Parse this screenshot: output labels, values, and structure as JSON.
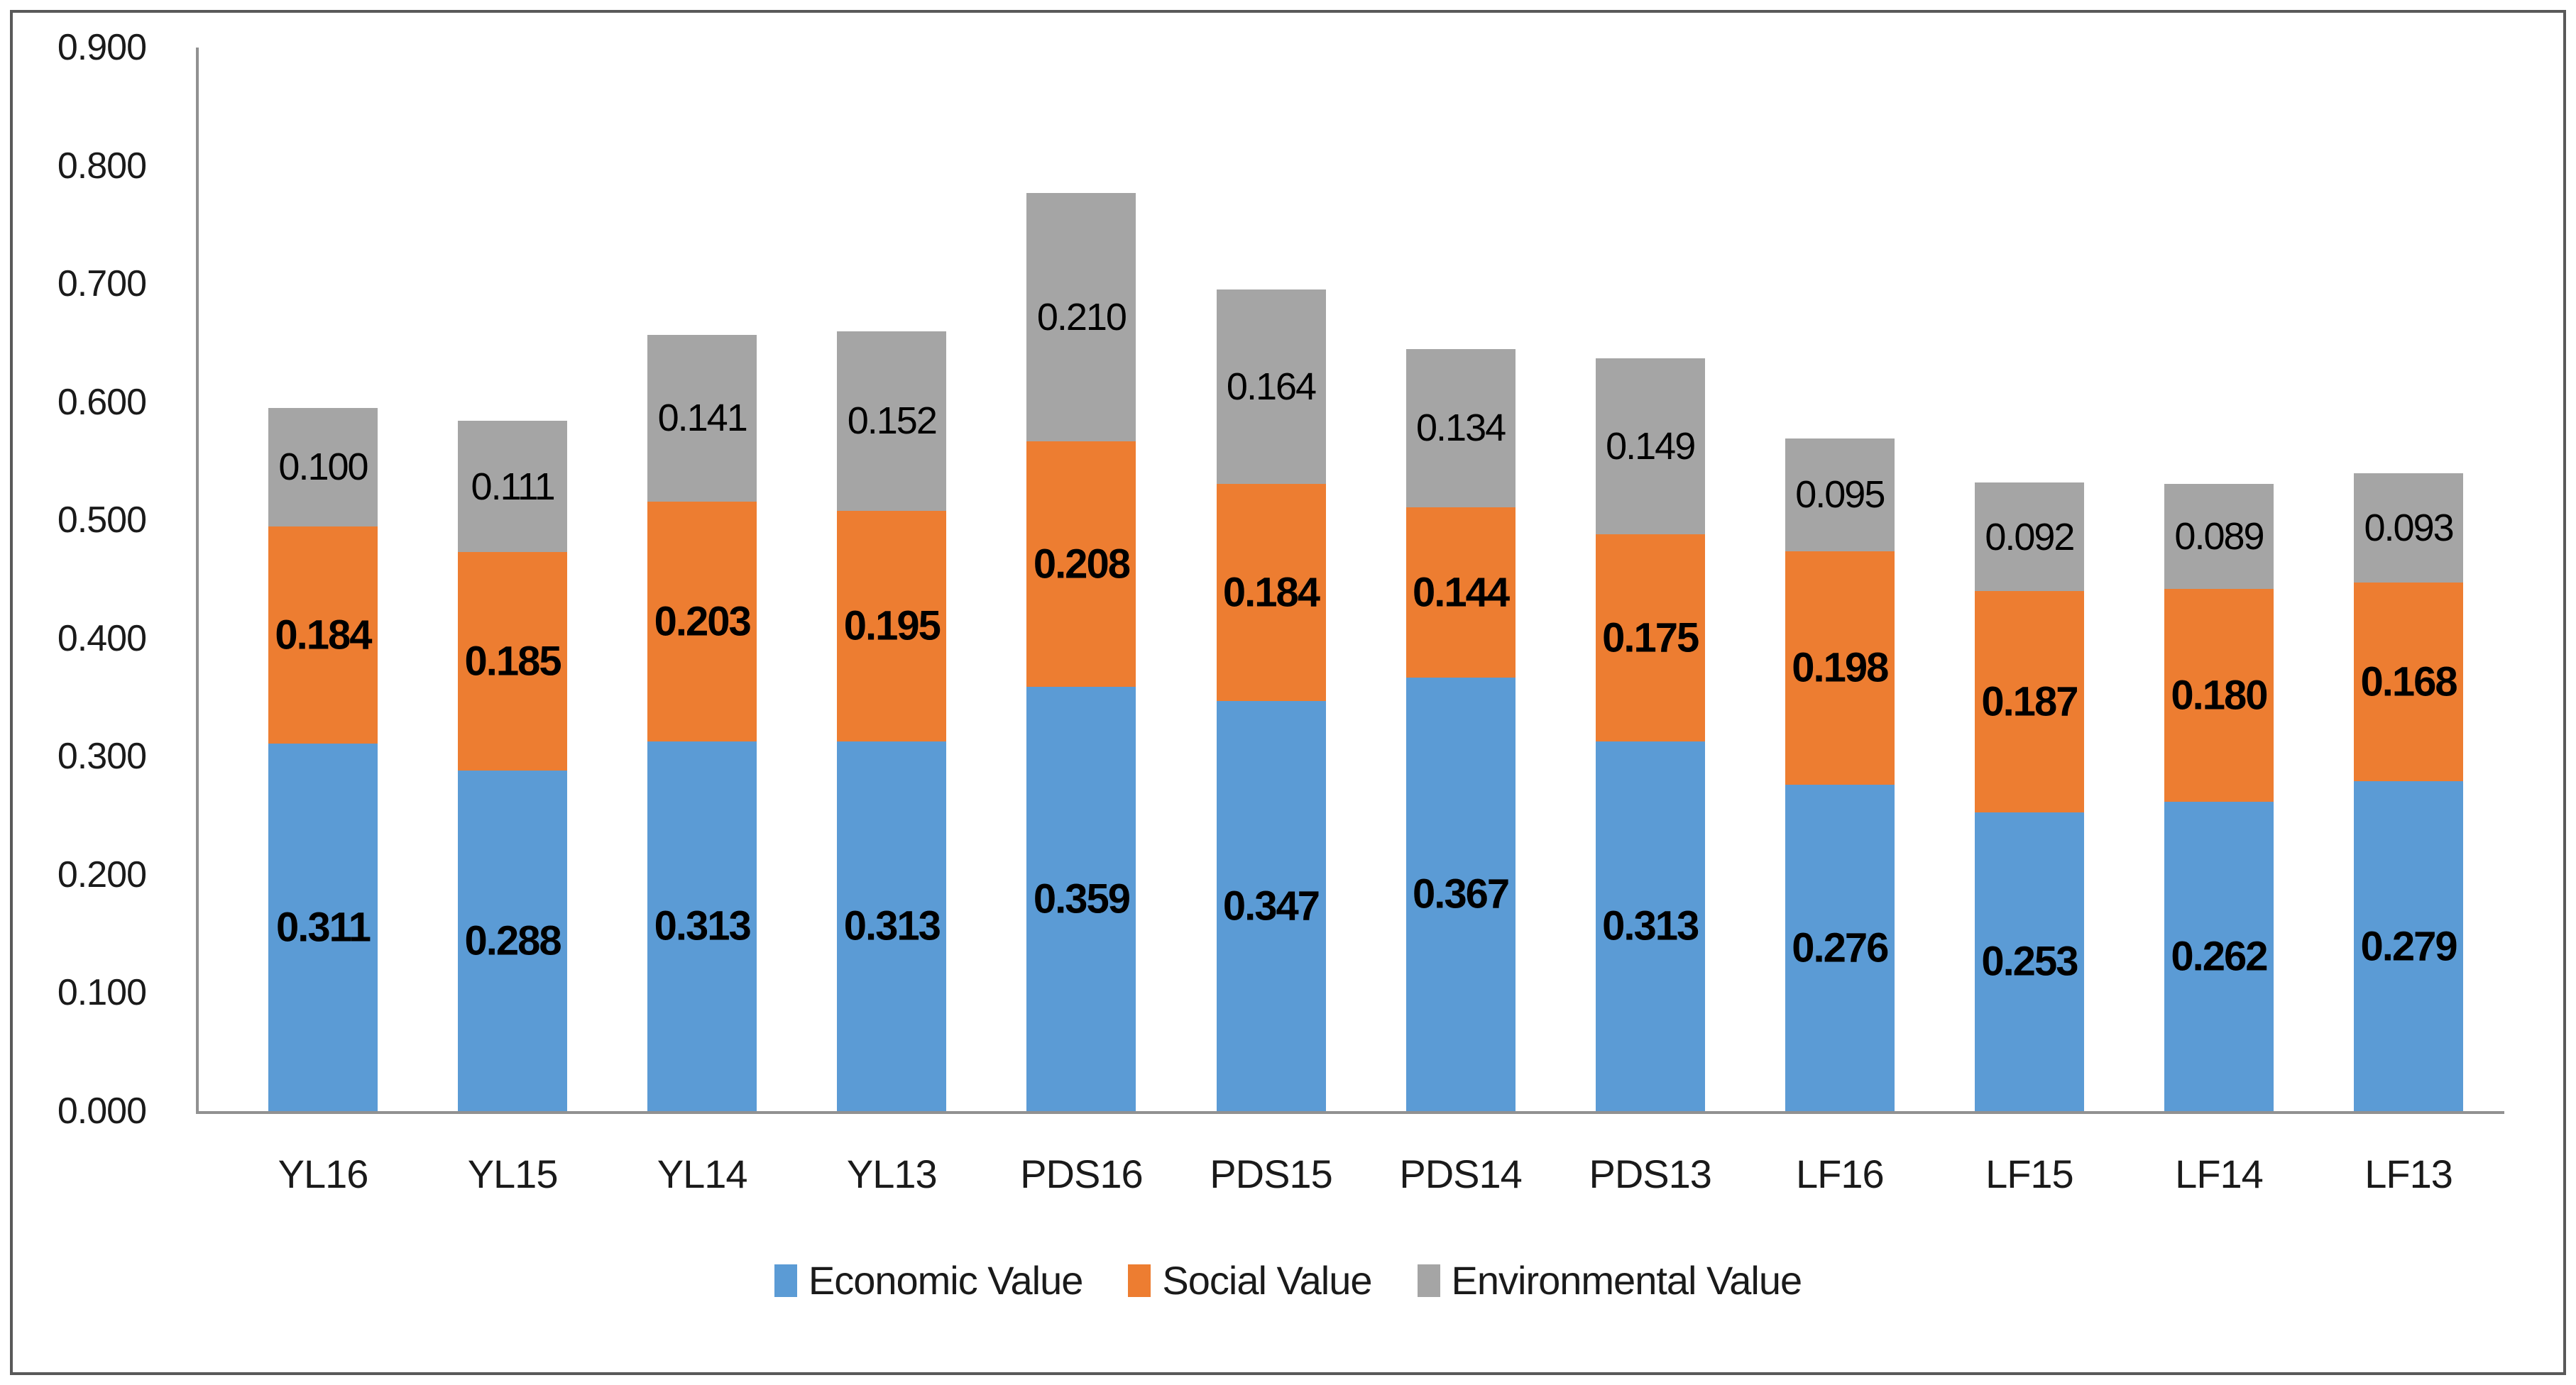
{
  "chart_data": {
    "type": "bar",
    "stacked": true,
    "title": "",
    "xlabel": "",
    "ylabel": "",
    "categories": [
      "YL16",
      "YL15",
      "YL14",
      "YL13",
      "PDS16",
      "PDS15",
      "PDS14",
      "PDS13",
      "LF16",
      "LF15",
      "LF14",
      "LF13"
    ],
    "series": [
      {
        "name": "Economic Value",
        "color": "#5B9BD5",
        "label_style": "bold",
        "values": [
          0.311,
          0.288,
          0.313,
          0.313,
          0.359,
          0.347,
          0.367,
          0.313,
          0.276,
          0.253,
          0.262,
          0.279
        ]
      },
      {
        "name": "Social Value",
        "color": "#ED7D31",
        "label_style": "bold",
        "values": [
          0.184,
          0.185,
          0.203,
          0.195,
          0.208,
          0.184,
          0.144,
          0.175,
          0.198,
          0.187,
          0.18,
          0.168
        ]
      },
      {
        "name": "Environmental Value",
        "color": "#A5A5A5",
        "label_style": "regular",
        "values": [
          0.1,
          0.111,
          0.141,
          0.152,
          0.21,
          0.164,
          0.134,
          0.149,
          0.095,
          0.092,
          0.089,
          0.093
        ]
      }
    ],
    "ylim": [
      0,
      0.9
    ],
    "ytick_step": 0.1,
    "y_ticks": [
      "0.000",
      "0.100",
      "0.200",
      "0.300",
      "0.400",
      "0.500",
      "0.600",
      "0.700",
      "0.800",
      "0.900"
    ],
    "value_format_decimals": 3,
    "grid": false,
    "legend_position": "bottom",
    "colors": {
      "axis_line": "#919191",
      "frame_border": "#595959",
      "label_text": "#000000",
      "axis_text": "#1a1a1a"
    }
  }
}
